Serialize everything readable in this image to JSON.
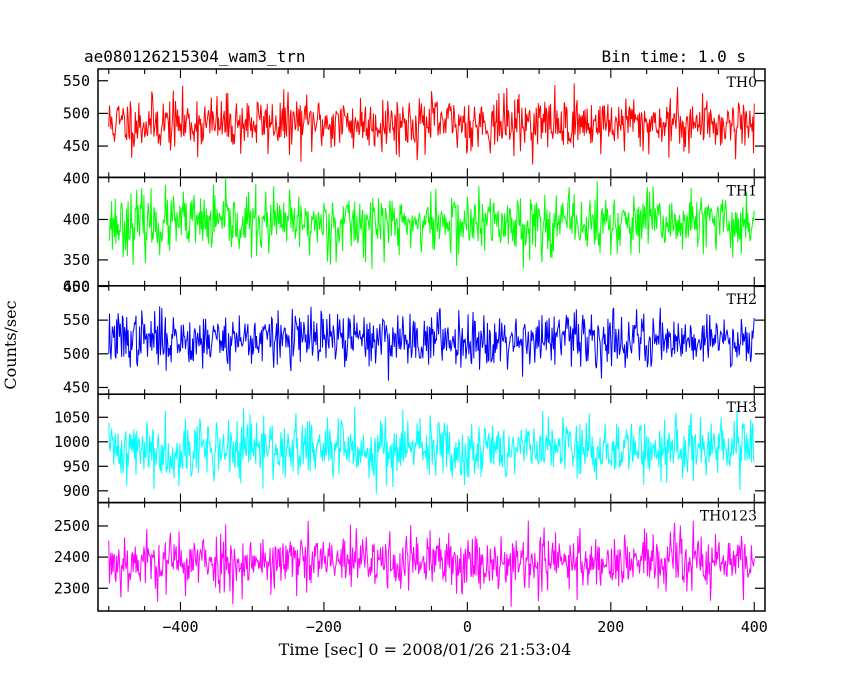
{
  "chart_data": {
    "type": "line",
    "title": "ae080126215304_wam3_trn",
    "subtitle": "Bin time: 1.0 s",
    "xlabel": "Time [sec] 0 = 2008/01/26 21:53:04",
    "ylabel": "Counts/sec",
    "xlim": [
      -515,
      415
    ],
    "x_data_range": [
      -500,
      400
    ],
    "bin_time": 1.0,
    "xticks": [
      -400,
      -200,
      0,
      200,
      400
    ],
    "xtick_labels": [
      "−400",
      "−200",
      "0",
      "200",
      "400"
    ],
    "panels": [
      {
        "name": "TH0",
        "color": "#ff0000",
        "ylim": [
          402,
          568
        ],
        "yticks": [
          450,
          500,
          550
        ],
        "ytick_labels": [
          "450",
          "500",
          "550"
        ],
        "edge_tick_label": "400",
        "mean": 485,
        "noise_sd": 21,
        "seed": 11
      },
      {
        "name": "TH1",
        "color": "#00ff00",
        "ylim": [
          318,
          452
        ],
        "yticks": [
          350,
          400
        ],
        "ytick_labels": [
          "350",
          "400"
        ],
        "edge_tick_label": "450",
        "mean": 395,
        "noise_sd": 19,
        "seed": 23
      },
      {
        "name": "TH2",
        "color": "#0000ff",
        "ylim": [
          440,
          601
        ],
        "yticks": [
          450,
          500,
          550,
          600
        ],
        "ytick_labels": [
          "450",
          "500",
          "550",
          "600"
        ],
        "mean": 522,
        "noise_sd": 20,
        "seed": 37
      },
      {
        "name": "TH3",
        "color": "#00ffff",
        "ylim": [
          876,
          1097
        ],
        "yticks": [
          900,
          950,
          1000,
          1050
        ],
        "ytick_labels": [
          "900",
          "950",
          "1000",
          "1050"
        ],
        "mean": 985,
        "noise_sd": 32,
        "seed": 41
      },
      {
        "name": "TH0123",
        "color": "#ff00ff",
        "ylim": [
          2227,
          2575
        ],
        "yticks": [
          2300,
          2400,
          2500
        ],
        "ytick_labels": [
          "2300",
          "2400",
          "2500"
        ],
        "mean": 2385,
        "noise_sd": 48,
        "seed": 53
      }
    ]
  }
}
